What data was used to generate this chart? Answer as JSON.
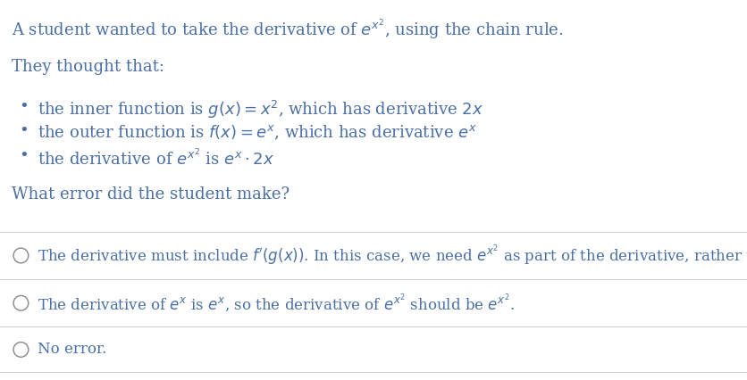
{
  "background_color": "#ffffff",
  "text_color": "#4a6fa5",
  "title_line": "A student wanted to take the derivative of $e^{x^2}$, using the chain rule.",
  "intro_line": "They thought that:",
  "bullets": [
    "the inner function is $g\\left(x\\right) = x^2$, which has derivative $2x$",
    "the outer function is $f\\left(x\\right) = e^x$, which has derivative $e^x$",
    "the derivative of $e^{x^2}$ is $e^x \\cdot 2x$"
  ],
  "question": "What error did the student make?",
  "options": [
    "The derivative must include $f'\\left(g\\left(x\\right)\\right)$. In this case, we need $e^{x^2}$ as part of the derivative, rather than $e^x$.",
    "The derivative of $e^x$ is $e^x$, so the derivative of $e^{x^2}$ should be $e^{x^2}$.",
    "No error."
  ],
  "font_size_title": 13,
  "font_size_body": 13,
  "font_size_options": 12,
  "option_divider_color": "#d0d0d0",
  "circle_color": "#888888"
}
